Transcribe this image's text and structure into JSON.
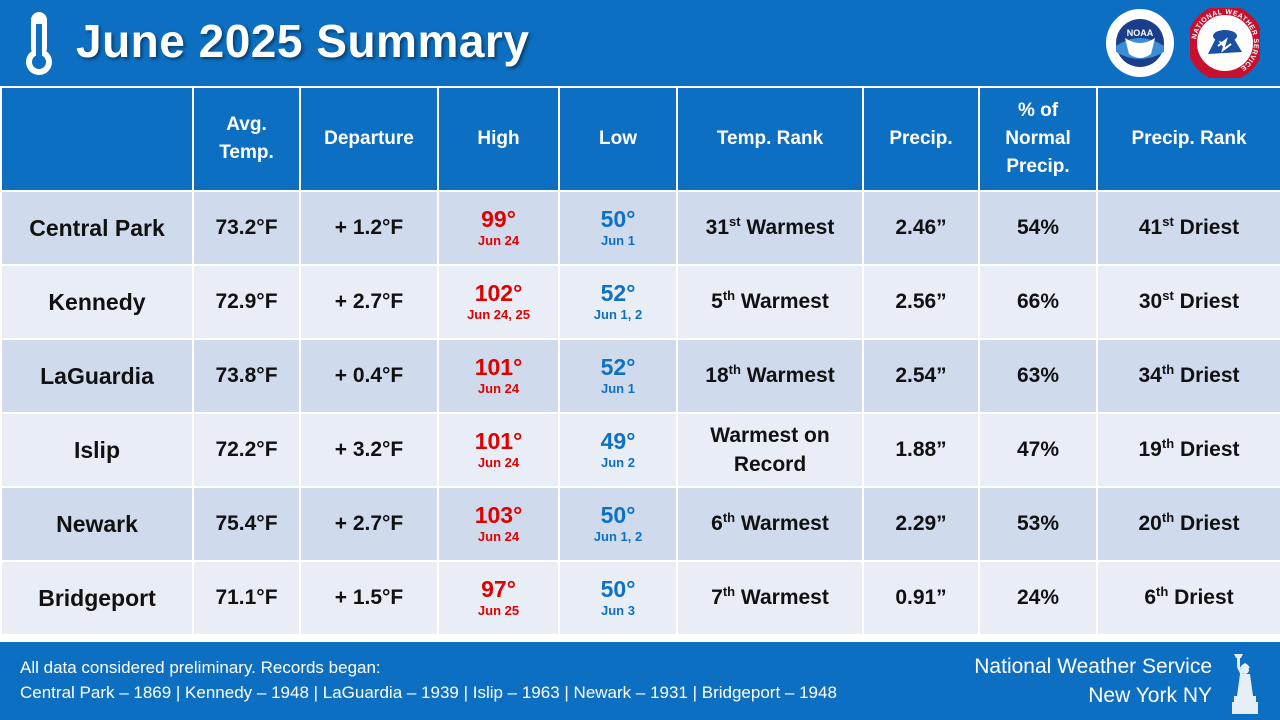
{
  "header": {
    "title": "June 2025 Summary",
    "icons": {
      "thermometer": "thermometer-icon",
      "noaa_logo": "noaa-logo",
      "nws_logo": "nws-logo"
    }
  },
  "logo_text": {
    "nws_ring": "NATIONAL WEATHER SERVICE",
    "noaa_center": "NOAA"
  },
  "table": {
    "headers": {
      "station": "",
      "avg_temp_l1": "Avg.",
      "avg_temp_l2": "Temp.",
      "departure": "Departure",
      "high": "High",
      "low": "Low",
      "temp_rank": "Temp. Rank",
      "precip": "Precip.",
      "pct_l1": "% of",
      "pct_l2": "Normal",
      "pct_l3": "Precip.",
      "precip_rank": "Precip. Rank"
    },
    "rows": [
      {
        "station": "Central Park",
        "avg": "73.2°F",
        "departure": "+ 1.2°F",
        "high": "99°",
        "high_date": "Jun 24",
        "low": "50°",
        "low_date": "Jun 1",
        "temp_rank_num": "31",
        "temp_rank_suffix": "st",
        "temp_rank_text": " Warmest",
        "precip": "2.46”",
        "pct": "54%",
        "precip_rank_num": "41",
        "precip_rank_suffix": "st",
        "precip_rank_text": " Driest"
      },
      {
        "station": "Kennedy",
        "avg": "72.9°F",
        "departure": "+ 2.7°F",
        "high": "102°",
        "high_date": "Jun 24, 25",
        "low": "52°",
        "low_date": "Jun 1, 2",
        "temp_rank_num": "5",
        "temp_rank_suffix": "th",
        "temp_rank_text": " Warmest",
        "precip": "2.56”",
        "pct": "66%",
        "precip_rank_num": "30",
        "precip_rank_suffix": "st",
        "precip_rank_text": " Driest"
      },
      {
        "station": "LaGuardia",
        "avg": "73.8°F",
        "departure": "+ 0.4°F",
        "high": "101°",
        "high_date": "Jun 24",
        "low": "52°",
        "low_date": "Jun 1",
        "temp_rank_num": "18",
        "temp_rank_suffix": "th",
        "temp_rank_text": " Warmest",
        "precip": "2.54”",
        "pct": "63%",
        "precip_rank_num": "34",
        "precip_rank_suffix": "th",
        "precip_rank_text": " Driest"
      },
      {
        "station": "Islip",
        "avg": "72.2°F",
        "departure": "+ 3.2°F",
        "high": "101°",
        "high_date": "Jun 24",
        "low": "49°",
        "low_date": "Jun 2",
        "temp_rank_line1": "Warmest on",
        "temp_rank_line2": "Record",
        "precip": "1.88”",
        "pct": "47%",
        "precip_rank_num": "19",
        "precip_rank_suffix": "th",
        "precip_rank_text": " Driest"
      },
      {
        "station": "Newark",
        "avg": "75.4°F",
        "departure": "+ 2.7°F",
        "high": "103°",
        "high_date": "Jun 24",
        "low": "50°",
        "low_date": "Jun 1, 2",
        "temp_rank_num": "6",
        "temp_rank_suffix": "th",
        "temp_rank_text": " Warmest",
        "precip": "2.29”",
        "pct": "53%",
        "precip_rank_num": "20",
        "precip_rank_suffix": "th",
        "precip_rank_text": " Driest"
      },
      {
        "station": "Bridgeport",
        "avg": "71.1°F",
        "departure": "+ 1.5°F",
        "high": "97°",
        "high_date": "Jun 25",
        "low": "50°",
        "low_date": "Jun 3",
        "temp_rank_num": "7",
        "temp_rank_suffix": "th",
        "temp_rank_text": " Warmest",
        "precip": "0.91”",
        "pct": "24%",
        "precip_rank_num": "6",
        "precip_rank_suffix": "th",
        "precip_rank_text": " Driest"
      }
    ]
  },
  "footer": {
    "note_line1": "All data considered preliminary. Records began:",
    "note_line2": "Central Park – 1869  |  Kennedy – 1948  |  LaGuardia – 1939  |  Islip – 1963  |  Newark – 1931  |  Bridgeport – 1948",
    "agency": "National Weather Service",
    "office": "New York NY",
    "icon": "statue-of-liberty-icon"
  },
  "colors": {
    "brand_blue": "#0d6fc1",
    "row_dark": "#cfdbed",
    "row_light": "#e8edf6",
    "high_red": "#e00000",
    "low_blue": "#0e71c4"
  }
}
